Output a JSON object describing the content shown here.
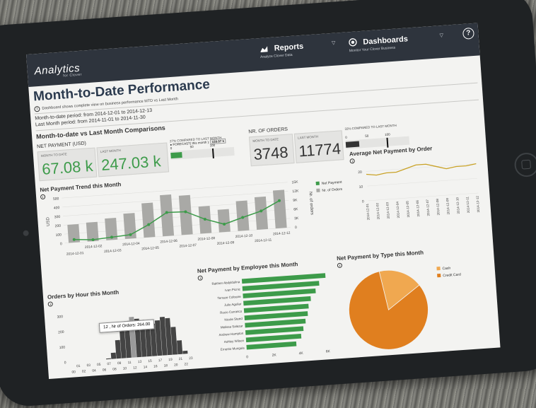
{
  "header": {
    "brand": "Analytics",
    "brand_sub": "for Clover",
    "nav": [
      {
        "label": "Reports",
        "sub": "Analyze Clover Data",
        "icon": "reports-icon"
      },
      {
        "label": "Dashboards",
        "sub": "Monitor Your Clover Business",
        "icon": "dashboards-icon"
      }
    ],
    "help": "?"
  },
  "page": {
    "title": "Month-to-Date Performance",
    "description": "Dashboard shows complete view on business performance MTD vs Last Month",
    "period_mtd": "Month-to-date period: from 2014-12-01 to 2014-12-13",
    "period_last": "Last Month period: from 2014-11-01 to 2014-11-30"
  },
  "comparisons": {
    "heading": "Month-to-date vs Last Month Comparisons",
    "net_payment": {
      "heading": "NET PAYMENT (USD)",
      "mtd_label": "MONTH TO DATE",
      "mtd_value": "67.08 k",
      "last_label": "LAST MONTH",
      "last_value": "247.03 k",
      "compare_text": "27% COMPARED TO LAST MONTH",
      "forecast_text": "FORECAST( this month ):",
      "forecast_value": "159.97 k",
      "gauge_ticks": [
        "0",
        "50",
        "100"
      ],
      "gauge_fraction": 0.27,
      "gauge_marker_fraction": 0.65,
      "gauge_color": "#3d9b4a"
    },
    "orders": {
      "heading": "NR. OF ORDERS",
      "mtd_label": "MONTH TO DATE",
      "mtd_value": "3748",
      "last_label": "LAST MONTH",
      "last_value": "11774",
      "compare_text": "32% COMPARED TO LAST MONTH",
      "gauge_ticks": [
        "0",
        "50",
        "100"
      ],
      "gauge_fraction": 0.32,
      "gauge_color": "#333333"
    }
  },
  "chart_data": [
    {
      "type": "bar",
      "title": "Net Payment Trend this Month",
      "ylabel": "USD",
      "y2label": "Nr. of orders",
      "categories": [
        "2014-12-01",
        "2014-12-02",
        "2014-12-03",
        "2014-12-04",
        "2014-12-05",
        "2014-12-06",
        "2014-12-07",
        "2014-12-08",
        "2014-12-09",
        "2014-12-10",
        "2014-12-11",
        "2014-12-12"
      ],
      "y_ticks": [
        "0",
        "100",
        "200",
        "300",
        "400",
        "500"
      ],
      "y2_ticks": [
        "0",
        "3K",
        "6K",
        "9K",
        "12K",
        "15K"
      ],
      "ylim": [
        0,
        500
      ],
      "y2lim": [
        0,
        15000
      ],
      "series": [
        {
          "name": "Net Payment",
          "type": "line",
          "color": "#3d9b4a",
          "axis": "right",
          "values": [
            1000,
            500,
            900,
            1300,
            4200,
            7800,
            7600,
            4700,
            2600,
            4400,
            6100,
            9100
          ]
        },
        {
          "name": "Nr. of Orders",
          "type": "bar",
          "color": "#a9a9a6",
          "axis": "left",
          "values": [
            200,
            210,
            240,
            280,
            380,
            455,
            435,
            300,
            250,
            330,
            360,
            420
          ]
        }
      ]
    },
    {
      "type": "line",
      "title": "Average Net Payment by Order",
      "categories": [
        "2014-12-01",
        "2014-12-02",
        "2014-12-03",
        "2014-12-04",
        "2014-12-05",
        "2014-12-06",
        "2014-12-07",
        "2014-12-08",
        "2014-12-09",
        "2014-12-10",
        "2014-12-11",
        "2014-12-12"
      ],
      "y_ticks": [
        "0",
        "10",
        "20"
      ],
      "ylim": [
        0,
        25
      ],
      "series": [
        {
          "name": "",
          "color": "#c9a227",
          "values": [
            18,
            17,
            18,
            18,
            20,
            22,
            22,
            20,
            18,
            19,
            19,
            20
          ]
        }
      ]
    },
    {
      "type": "bar",
      "title": "Orders by Hour this Month",
      "categories": [
        "00",
        "01",
        "02",
        "03",
        "04",
        "05",
        "06",
        "07",
        "08",
        "09",
        "10",
        "11",
        "12",
        "13",
        "14",
        "15",
        "16",
        "17",
        "18",
        "19",
        "20",
        "21",
        "22",
        "23"
      ],
      "x_tick_labels_top": [
        "01",
        "03",
        "05",
        "07",
        "09",
        "11",
        "13",
        "15",
        "17",
        "19",
        "21",
        "23"
      ],
      "x_tick_labels_bottom": [
        "00",
        "02",
        "04",
        "06",
        "08",
        "10",
        "12",
        "14",
        "16",
        "18",
        "20",
        "22"
      ],
      "y_ticks": [
        "0",
        "100",
        "200",
        "300"
      ],
      "ylim": [
        0,
        350
      ],
      "color": "#444444",
      "values": [
        0,
        0,
        0,
        0,
        0,
        0,
        0,
        5,
        40,
        120,
        180,
        240,
        264,
        250,
        240,
        220,
        210,
        230,
        250,
        240,
        180,
        90,
        20,
        0
      ],
      "tooltip": "12 , Nr of Orders: 264.00"
    },
    {
      "type": "bar",
      "orientation": "horizontal",
      "title": "Net Payment by Employee this Month",
      "categories": [
        "Rakhen Abdyldulina",
        "Ivan Picnic",
        "Terrace Coltrane",
        "Julio Aguilar",
        "Rocio Carrasco",
        "Nicole Steed",
        "Melissa Salazar",
        "Andrew Hampton",
        "Ashley Wilson",
        "Ernesto Munguia"
      ],
      "x_ticks": [
        "0",
        "2K",
        "4K",
        "6K"
      ],
      "xlim": [
        0,
        6500
      ],
      "color": "#3d9b4a",
      "values": [
        6200,
        5700,
        5400,
        5000,
        4800,
        4700,
        4500,
        4300,
        4100,
        3700
      ]
    },
    {
      "type": "pie",
      "title": "Net Payment by Type this Month",
      "labels": [
        "Cash",
        "Credit Card"
      ],
      "colors": [
        "#f0a850",
        "#e07f1f"
      ],
      "values": [
        18,
        82
      ]
    }
  ]
}
